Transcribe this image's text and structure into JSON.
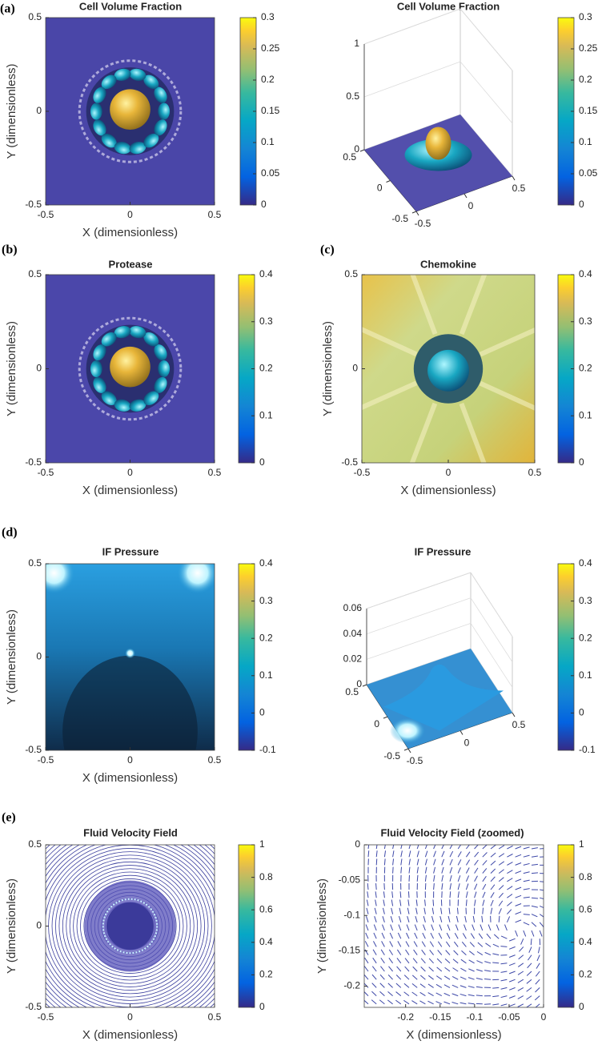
{
  "chart_data": [
    {
      "type": "heatmap",
      "panel_label": "(a)",
      "title": "Cell Volume Fraction",
      "xlabel": "X (dimensionless)",
      "ylabel": "Y (dimensionless)",
      "xlim": [
        -0.5,
        0.5
      ],
      "ylim": [
        -0.5,
        0.5
      ],
      "xticks": [
        -0.5,
        0,
        0.5
      ],
      "yticks": [
        -0.5,
        0,
        0.5
      ],
      "colormap": "parula",
      "clim": [
        0,
        0.3
      ],
      "cticks": [
        0,
        0.05,
        0.1,
        0.15,
        0.2,
        0.25,
        0.3
      ]
    },
    {
      "type": "surface",
      "title": "Cell Volume Fraction",
      "xlim": [
        -0.5,
        0.5
      ],
      "ylim": [
        -0.5,
        0.5
      ],
      "zlim": [
        0,
        1
      ],
      "xticks": [
        -0.5,
        0,
        0.5
      ],
      "yticks": [
        -0.5,
        0,
        0.5
      ],
      "zticks": [
        0,
        0.5,
        1
      ],
      "colormap": "parula",
      "clim": [
        0,
        0.3
      ],
      "cticks": [
        0,
        0.05,
        0.1,
        0.15,
        0.2,
        0.25,
        0.3
      ]
    },
    {
      "type": "heatmap",
      "panel_label": "(b)",
      "title": "Protease",
      "xlabel": "X (dimensionless)",
      "ylabel": "Y (dimensionless)",
      "xlim": [
        -0.5,
        0.5
      ],
      "ylim": [
        -0.5,
        0.5
      ],
      "xticks": [
        -0.5,
        0,
        0.5
      ],
      "yticks": [
        -0.5,
        0,
        0.5
      ],
      "colormap": "parula",
      "clim": [
        0,
        0.4
      ],
      "cticks": [
        0,
        0.1,
        0.2,
        0.3,
        0.4
      ]
    },
    {
      "type": "heatmap",
      "panel_label": "(c)",
      "title": "Chemokine",
      "xlabel": "X (dimensionless)",
      "ylabel": "Y (dimensionless)",
      "xlim": [
        -0.5,
        0.5
      ],
      "ylim": [
        -0.5,
        0.5
      ],
      "xticks": [
        -0.5,
        0,
        0.5
      ],
      "yticks": [
        -0.5,
        0,
        0.5
      ],
      "colormap": "parula",
      "clim": [
        0,
        0.4
      ],
      "cticks": [
        0,
        0.1,
        0.2,
        0.3,
        0.4
      ]
    },
    {
      "type": "heatmap",
      "panel_label": "(d)",
      "title": "IF Pressure",
      "xlabel": "X (dimensionless)",
      "ylabel": "Y (dimensionless)",
      "xlim": [
        -0.5,
        0.5
      ],
      "ylim": [
        -0.5,
        0.5
      ],
      "xticks": [
        -0.5,
        0,
        0.5
      ],
      "yticks": [
        -0.5,
        0,
        0.5
      ],
      "colormap": "parula",
      "clim": [
        -0.1,
        0.4
      ],
      "cticks": [
        -0.1,
        0,
        0.1,
        0.2,
        0.3,
        0.4
      ]
    },
    {
      "type": "surface",
      "title": "IF Pressure",
      "xlim": [
        -0.5,
        0.5
      ],
      "ylim": [
        -0.5,
        0.5
      ],
      "zlim": [
        0,
        0.06
      ],
      "xticks": [
        -0.5,
        0,
        0.5
      ],
      "yticks": [
        -0.5,
        0,
        0.5
      ],
      "zticks": [
        0,
        0.02,
        0.04,
        0.06
      ],
      "colormap": "parula",
      "clim": [
        -0.1,
        0.4
      ],
      "cticks": [
        -0.1,
        0,
        0.1,
        0.2,
        0.3,
        0.4
      ]
    },
    {
      "type": "quiver",
      "panel_label": "(e)",
      "title": "Fluid Velocity Field",
      "xlabel": "X (dimensionless)",
      "ylabel": "Y (dimensionless)",
      "xlim": [
        -0.5,
        0.5
      ],
      "ylim": [
        -0.5,
        0.5
      ],
      "xticks": [
        -0.5,
        0,
        0.5
      ],
      "yticks": [
        -0.5,
        0,
        0.5
      ],
      "colormap": "parula",
      "clim": [
        0,
        1
      ],
      "cticks": [
        0,
        0.2,
        0.4,
        0.6,
        0.8,
        1
      ]
    },
    {
      "type": "quiver",
      "title": "Fluid Velocity Field (zoomed)",
      "xlabel": "X (dimensionless)",
      "ylabel": "Y (dimensionless)",
      "xlim": [
        -0.26,
        0
      ],
      "ylim": [
        -0.23,
        0
      ],
      "xticks": [
        -0.2,
        -0.15,
        -0.1,
        -0.05,
        0
      ],
      "yticks": [
        0,
        -0.05,
        -0.1,
        -0.15,
        -0.2
      ],
      "colormap": "parula",
      "clim": [
        0,
        1
      ],
      "cticks": [
        0,
        0.2,
        0.4,
        0.6,
        0.8,
        1
      ]
    }
  ]
}
